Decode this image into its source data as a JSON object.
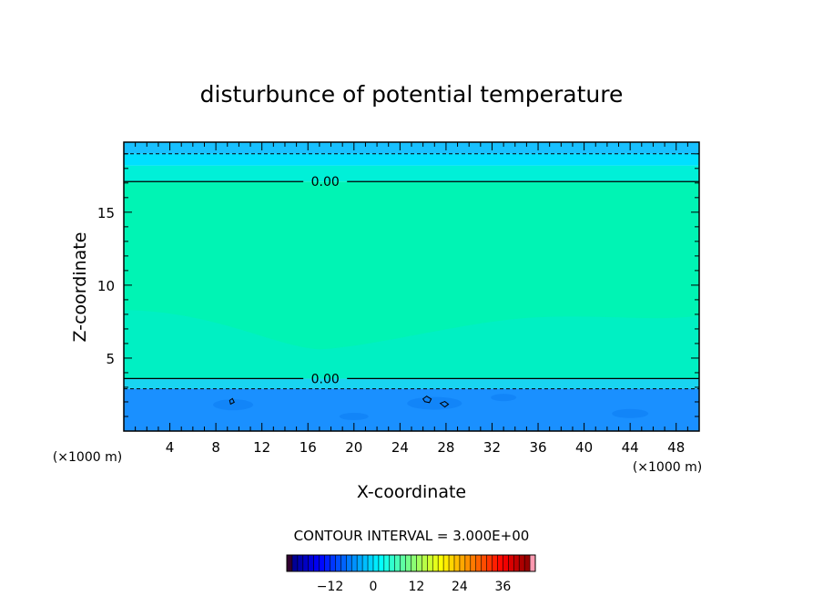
{
  "chart_data": {
    "type": "heatmap",
    "title": "disturbunce of potential temperature",
    "xlabel": "X-coordinate",
    "ylabel": "Z-coordinate",
    "x_unit": "(×1000 m)",
    "y_unit": "(×1000 m)",
    "xlim": [
      0,
      50
    ],
    "ylim": [
      0,
      19.8
    ],
    "x_ticks": [
      4,
      8,
      12,
      16,
      20,
      24,
      28,
      32,
      36,
      40,
      44,
      48
    ],
    "y_ticks": [
      5,
      10,
      15
    ],
    "x_tick_labels": [
      "4",
      "8",
      "12",
      "16",
      "20",
      "24",
      "28",
      "32",
      "36",
      "40",
      "44",
      "48"
    ],
    "y_tick_labels": [
      "5",
      "10",
      "15"
    ],
    "contour_interval_text": "CONTOUR INTERVAL = 3.000E+00",
    "contour_interval": 3.0,
    "zero_contours": [
      {
        "label": "0.00",
        "z": 17.1
      },
      {
        "label": "0.00",
        "z": 3.6
      }
    ],
    "dashed_contours_z": [
      19.0,
      2.9
    ],
    "bands": [
      {
        "z0": 0.0,
        "z1": 2.9,
        "value": -5,
        "color": "#1a90ff"
      },
      {
        "z0": 2.9,
        "z1": 3.6,
        "value": -1,
        "color": "#19d4f0"
      },
      {
        "z0": 3.6,
        "z1": 17.1,
        "value": 0.5,
        "color": "#00f4b4"
      },
      {
        "z0": 17.1,
        "z1": 18.2,
        "value": 0,
        "color": "#00f0d8"
      },
      {
        "z0": 18.2,
        "z1": 19.0,
        "value": -1,
        "color": "#00e0ff"
      },
      {
        "z0": 19.0,
        "z1": 19.8,
        "value": -2,
        "color": "#18c0ff"
      }
    ],
    "colorbar": {
      "min": -24,
      "max": 45,
      "ticks": [
        -12,
        0,
        12,
        24,
        36
      ],
      "tick_labels": [
        "−12",
        "0",
        "12",
        "24",
        "36"
      ]
    }
  }
}
